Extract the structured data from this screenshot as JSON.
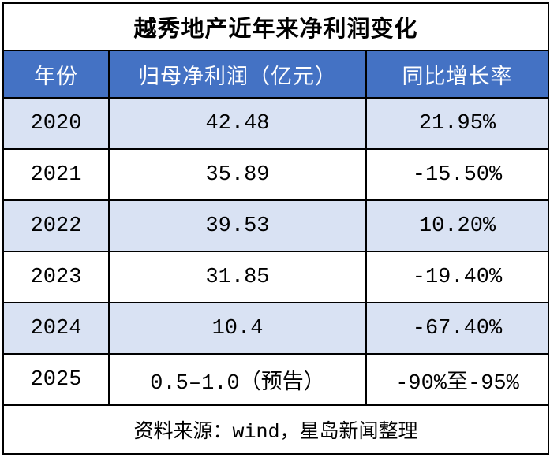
{
  "table": {
    "title": "越秀地产近年来净利润变化",
    "columns": {
      "year": "年份",
      "profit": "归母净利润（亿元）",
      "growth": "同比增长率"
    },
    "rows": [
      {
        "year": "2020",
        "profit": "42.48",
        "growth": "21.95%"
      },
      {
        "year": "2021",
        "profit": "35.89",
        "growth": "-15.50%"
      },
      {
        "year": "2022",
        "profit": "39.53",
        "growth": "10.20%"
      },
      {
        "year": "2023",
        "profit": "31.85",
        "growth": "-19.40%"
      },
      {
        "year": "2024",
        "profit": "10.4",
        "growth": "-67.40%"
      },
      {
        "year": "2025",
        "profit": "0.5–1.0（预告）",
        "growth": "-90%至-95%"
      }
    ],
    "footer": "资料来源：wind，星岛新闻整理"
  },
  "colors": {
    "header_bg": "#4472C4",
    "header_text": "#FFFFFF",
    "row_alt_bg": "#D9E2F3",
    "row_plain_bg": "#FFFFFF",
    "grid_border": "#000000",
    "text": "#000000"
  },
  "chart_data": {
    "type": "table",
    "title": "越秀地产近年来净利润变化",
    "columns": [
      "年份",
      "归母净利润（亿元）",
      "同比增长率"
    ],
    "rows": [
      [
        "2020",
        "42.48",
        "21.95%"
      ],
      [
        "2021",
        "35.89",
        "-15.50%"
      ],
      [
        "2022",
        "39.53",
        "10.20%"
      ],
      [
        "2023",
        "31.85",
        "-19.40%"
      ],
      [
        "2024",
        "10.4",
        "-67.40%"
      ],
      [
        "2025",
        "0.5–1.0（预告）",
        "-90%至-95%"
      ]
    ],
    "series_numeric": [
      {
        "name": "归母净利润（亿元）",
        "x": [
          2020,
          2021,
          2022,
          2023,
          2024
        ],
        "values": [
          42.48,
          35.89,
          39.53,
          31.85,
          10.4
        ],
        "note_2025": "0.5-1.0 (forecast)"
      },
      {
        "name": "同比增长率(%)",
        "x": [
          2020,
          2021,
          2022,
          2023,
          2024
        ],
        "values": [
          21.95,
          -15.5,
          10.2,
          -19.4,
          -67.4
        ],
        "note_2025": "-90 to -95"
      }
    ],
    "source_note": "资料来源：wind，星岛新闻整理"
  }
}
